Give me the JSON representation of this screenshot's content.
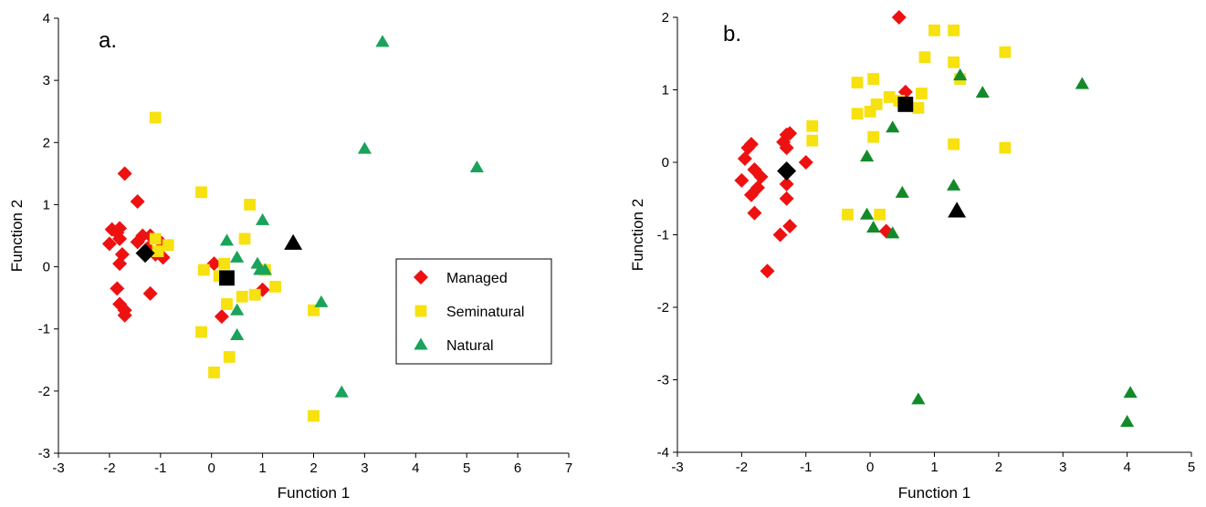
{
  "colors": {
    "managed": "#ee1111",
    "seminatural": "#f7e10e",
    "natural_a": "#1aa35a",
    "natural_b": "#138a2a",
    "centroid": "#000000"
  },
  "chart_data": [
    {
      "type": "scatter",
      "panel_label": "a.",
      "xlabel": "Function 1",
      "ylabel": "Function 2",
      "xlim": [
        -3,
        7
      ],
      "ylim": [
        -3,
        4
      ],
      "xticks": [
        -3,
        -2,
        -1,
        0,
        1,
        2,
        3,
        4,
        5,
        6,
        7
      ],
      "yticks": [
        -3,
        -2,
        -1,
        0,
        1,
        2,
        3,
        4
      ],
      "legend": {
        "position": "right",
        "entries": [
          {
            "label": "Managed",
            "series": "Managed"
          },
          {
            "label": "Seminatural",
            "series": "Seminatural"
          },
          {
            "label": "Natural",
            "series": "Natural"
          }
        ]
      },
      "series": [
        {
          "name": "Managed",
          "marker": "diamond",
          "color": "#ee1111",
          "points": [
            [
              -2.0,
              0.37
            ],
            [
              -1.95,
              0.6
            ],
            [
              -1.85,
              0.55
            ],
            [
              -1.8,
              0.62
            ],
            [
              -1.8,
              0.45
            ],
            [
              -1.75,
              0.2
            ],
            [
              -1.8,
              0.05
            ],
            [
              -1.85,
              -0.35
            ],
            [
              -1.8,
              -0.6
            ],
            [
              -1.7,
              -0.7
            ],
            [
              -1.7,
              -0.78
            ],
            [
              -1.7,
              1.5
            ],
            [
              -1.45,
              1.05
            ],
            [
              -1.45,
              0.4
            ],
            [
              -1.35,
              0.5
            ],
            [
              -1.25,
              0.3
            ],
            [
              -1.2,
              0.5
            ],
            [
              -1.1,
              0.2
            ],
            [
              -1.0,
              0.4
            ],
            [
              -0.95,
              0.15
            ],
            [
              -1.2,
              -0.43
            ],
            [
              0.05,
              0.05
            ],
            [
              0.2,
              -0.8
            ],
            [
              1.0,
              -0.37
            ]
          ]
        },
        {
          "name": "Seminatural",
          "marker": "square",
          "color": "#f7e10e",
          "points": [
            [
              -1.1,
              2.4
            ],
            [
              -1.1,
              0.45
            ],
            [
              -1.05,
              0.25
            ],
            [
              -0.85,
              0.35
            ],
            [
              -0.2,
              1.2
            ],
            [
              -0.15,
              -0.05
            ],
            [
              -0.2,
              -1.05
            ],
            [
              0.05,
              -1.7
            ],
            [
              0.15,
              -0.15
            ],
            [
              0.25,
              0.05
            ],
            [
              0.3,
              -0.6
            ],
            [
              0.35,
              -1.45
            ],
            [
              0.6,
              -0.48
            ],
            [
              0.65,
              0.45
            ],
            [
              0.75,
              1.0
            ],
            [
              0.85,
              -0.45
            ],
            [
              1.05,
              -0.05
            ],
            [
              1.25,
              -0.32
            ],
            [
              2.0,
              -0.7
            ],
            [
              2.0,
              -2.4
            ]
          ]
        },
        {
          "name": "Natural",
          "marker": "triangle",
          "color": "#1aa35a",
          "points": [
            [
              0.3,
              0.42
            ],
            [
              0.5,
              0.15
            ],
            [
              0.5,
              -0.7
            ],
            [
              0.5,
              -1.1
            ],
            [
              0.9,
              0.05
            ],
            [
              0.95,
              -0.05
            ],
            [
              1.0,
              0.75
            ],
            [
              1.05,
              -0.05
            ],
            [
              2.15,
              -0.57
            ],
            [
              2.55,
              -2.02
            ],
            [
              3.0,
              1.9
            ],
            [
              3.35,
              3.62
            ],
            [
              5.2,
              1.6
            ]
          ]
        },
        {
          "name": "",
          "role": "centroids",
          "color": "#000000",
          "points": [
            {
              "x": -1.3,
              "y": 0.22,
              "marker": "diamond"
            },
            {
              "x": 0.3,
              "y": -0.18,
              "marker": "square"
            },
            {
              "x": 1.6,
              "y": 0.38,
              "marker": "triangle"
            }
          ]
        }
      ]
    },
    {
      "type": "scatter",
      "panel_label": "b.",
      "xlabel": "Function 1",
      "ylabel": "Function 2",
      "xlim": [
        -3,
        5
      ],
      "ylim": [
        -4,
        2
      ],
      "xticks": [
        -3,
        -2,
        -1,
        0,
        1,
        2,
        3,
        4,
        5
      ],
      "yticks": [
        -4,
        -3,
        -2,
        -1,
        0,
        1,
        2
      ],
      "series": [
        {
          "name": "Managed",
          "marker": "diamond",
          "color": "#ee1111",
          "points": [
            [
              -2.0,
              -0.25
            ],
            [
              -1.95,
              0.05
            ],
            [
              -1.9,
              0.2
            ],
            [
              -1.85,
              -0.45
            ],
            [
              -1.85,
              0.25
            ],
            [
              -1.8,
              -0.1
            ],
            [
              -1.75,
              -0.35
            ],
            [
              -1.8,
              -0.7
            ],
            [
              -1.7,
              -0.2
            ],
            [
              -1.6,
              -1.5
            ],
            [
              -1.4,
              -1.0
            ],
            [
              -1.35,
              0.28
            ],
            [
              -1.3,
              0.2
            ],
            [
              -1.3,
              0.38
            ],
            [
              -1.25,
              0.4
            ],
            [
              -1.3,
              -0.3
            ],
            [
              -1.3,
              -0.5
            ],
            [
              -1.25,
              -0.88
            ],
            [
              -1.0,
              0.0
            ],
            [
              0.25,
              -0.95
            ],
            [
              0.45,
              2.0
            ],
            [
              0.55,
              0.97
            ]
          ]
        },
        {
          "name": "Seminatural",
          "marker": "square",
          "color": "#f7e10e",
          "points": [
            [
              -0.9,
              0.5
            ],
            [
              -0.9,
              0.3
            ],
            [
              -0.35,
              -0.72
            ],
            [
              -0.2,
              1.1
            ],
            [
              -0.2,
              0.67
            ],
            [
              0.0,
              0.7
            ],
            [
              0.05,
              1.15
            ],
            [
              0.05,
              0.35
            ],
            [
              0.1,
              0.8
            ],
            [
              0.15,
              -0.72
            ],
            [
              0.3,
              0.9
            ],
            [
              0.45,
              0.85
            ],
            [
              0.75,
              0.75
            ],
            [
              0.8,
              0.95
            ],
            [
              0.85,
              1.45
            ],
            [
              1.0,
              1.82
            ],
            [
              1.3,
              1.82
            ],
            [
              1.3,
              1.38
            ],
            [
              1.3,
              0.25
            ],
            [
              1.4,
              1.15
            ],
            [
              2.1,
              1.52
            ],
            [
              2.1,
              0.2
            ]
          ]
        },
        {
          "name": "Natural",
          "marker": "triangle",
          "color": "#138a2a",
          "points": [
            [
              -0.05,
              0.08
            ],
            [
              -0.05,
              -0.72
            ],
            [
              0.05,
              -0.9
            ],
            [
              0.35,
              -0.98
            ],
            [
              0.35,
              0.48
            ],
            [
              0.5,
              -0.42
            ],
            [
              0.75,
              -3.27
            ],
            [
              1.3,
              -0.32
            ],
            [
              1.4,
              1.2
            ],
            [
              1.75,
              0.96
            ],
            [
              3.3,
              1.08
            ],
            [
              4.0,
              -3.58
            ],
            [
              4.05,
              -3.18
            ]
          ]
        },
        {
          "name": "",
          "role": "centroids",
          "color": "#000000",
          "points": [
            {
              "x": -1.3,
              "y": -0.12,
              "marker": "diamond"
            },
            {
              "x": 0.55,
              "y": 0.8,
              "marker": "square"
            },
            {
              "x": 1.35,
              "y": -0.67,
              "marker": "triangle"
            }
          ]
        }
      ]
    }
  ]
}
